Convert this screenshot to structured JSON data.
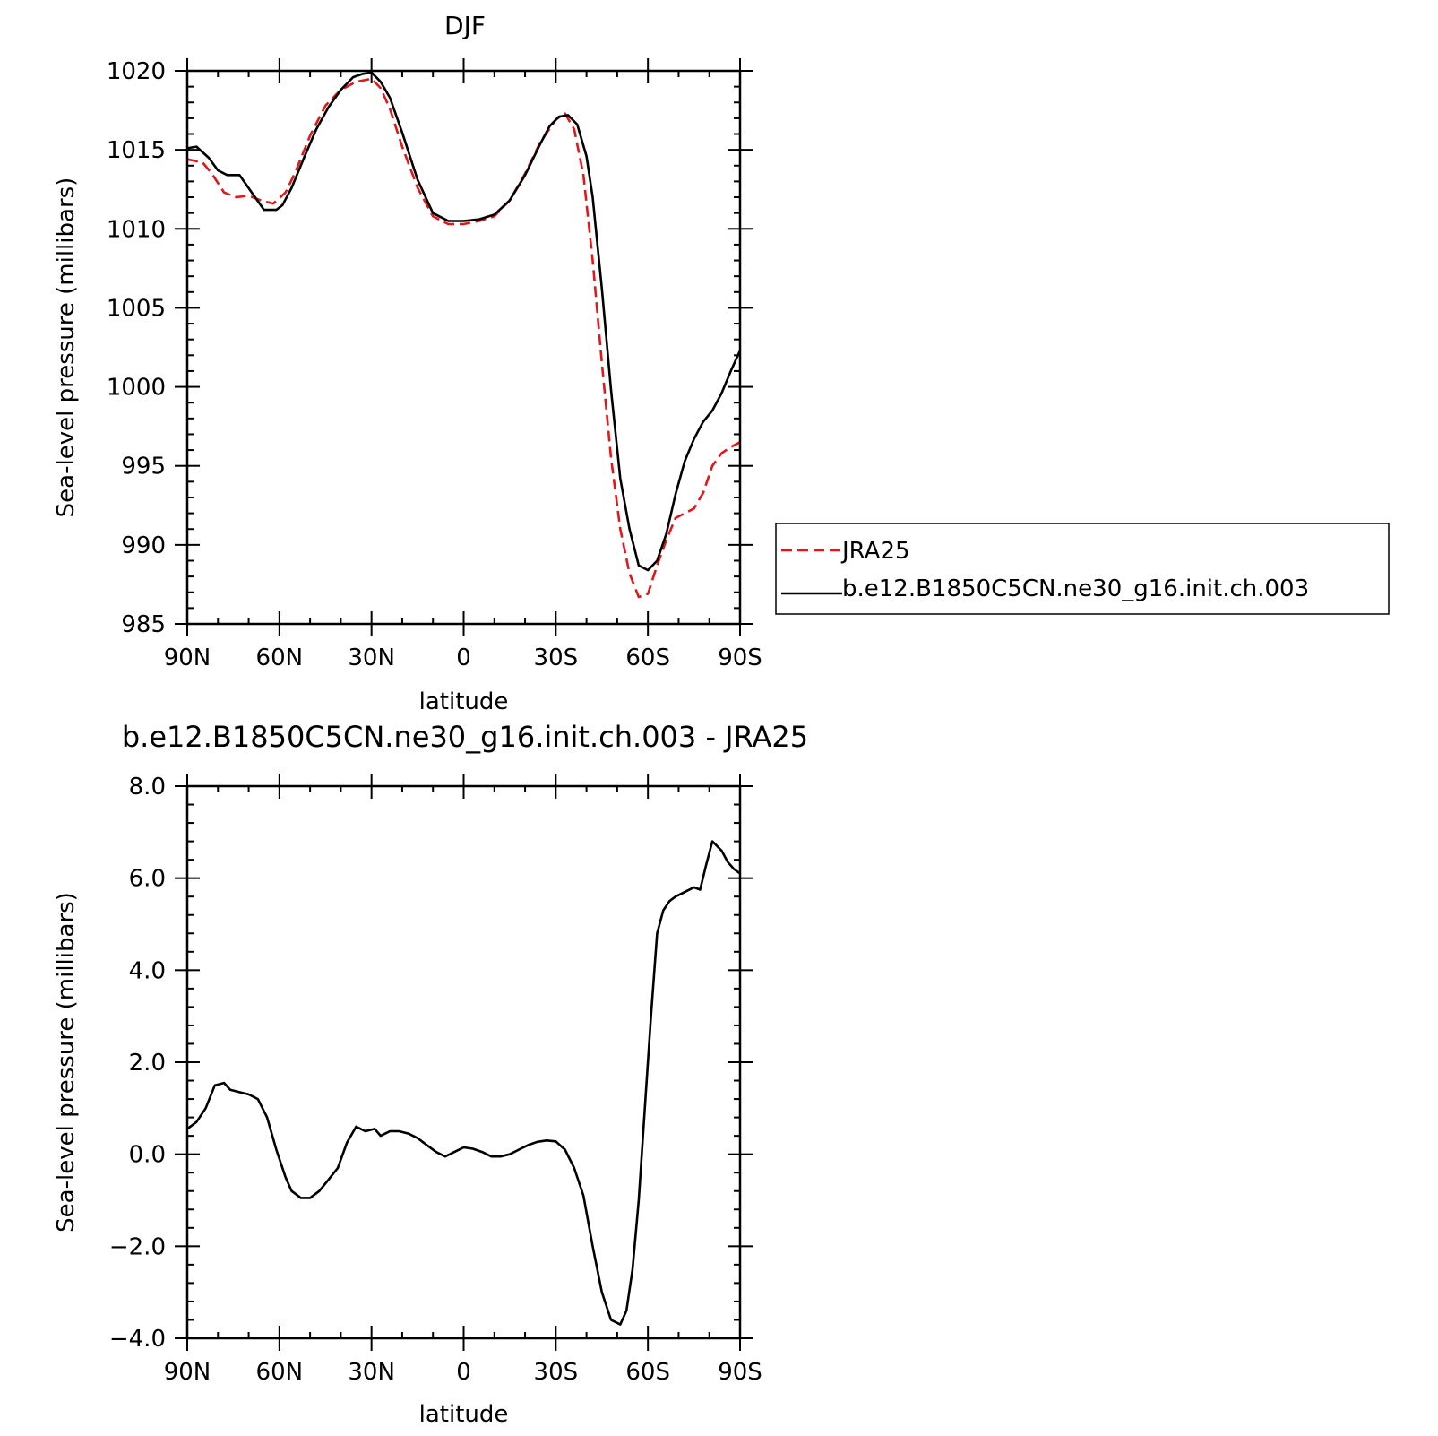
{
  "chart_data": [
    {
      "type": "line",
      "title": "DJF",
      "xlabel": "latitude",
      "ylabel": "Sea-level pressure (millibars)",
      "xlim": [
        -90,
        90
      ],
      "x_direction": "north to south",
      "ylim": [
        985,
        1020
      ],
      "xticks": [
        -90,
        -60,
        -30,
        0,
        30,
        60,
        90
      ],
      "xtick_labels": [
        "90N",
        "60N",
        "30N",
        "0",
        "30S",
        "60S",
        "90S"
      ],
      "yticks": [
        985,
        990,
        995,
        1000,
        1005,
        1010,
        1015,
        1020
      ],
      "ytick_labels": [
        "985",
        "990",
        "995",
        "1000",
        "1005",
        "1010",
        "1015",
        "1020"
      ],
      "grid": false,
      "legend": {
        "placement": "outside-right",
        "entries": [
          "JRA25",
          "b.e12.B1850C5CN.ne30_g16.init.ch.003"
        ]
      },
      "series": [
        {
          "name": "JRA25",
          "color": "#e0181b",
          "dash": "dashed",
          "x": [
            -90,
            -85,
            -82,
            -78,
            -74,
            -70,
            -66,
            -62,
            -58,
            -55,
            -50,
            -45,
            -40,
            -35,
            -30,
            -27,
            -24,
            -20,
            -15,
            -10,
            -5,
            0,
            5,
            10,
            15,
            20,
            25,
            30,
            33,
            36,
            39,
            42,
            45,
            48,
            51,
            54,
            57,
            60,
            63,
            66,
            69,
            72,
            75,
            78,
            81,
            84,
            87,
            90
          ],
          "y": [
            1014.4,
            1014.2,
            1013.5,
            1012.3,
            1012.0,
            1012.1,
            1011.8,
            1011.6,
            1012.3,
            1013.5,
            1015.9,
            1017.8,
            1018.8,
            1019.3,
            1019.5,
            1018.9,
            1017.6,
            1015.2,
            1012.6,
            1010.8,
            1010.3,
            1010.3,
            1010.5,
            1010.8,
            1011.8,
            1013.5,
            1015.5,
            1016.9,
            1017.3,
            1016.3,
            1013.4,
            1008.0,
            1001.5,
            995.5,
            991.0,
            988.2,
            986.7,
            986.9,
            988.7,
            990.3,
            991.7,
            992.0,
            992.3,
            993.3,
            995.0,
            995.8,
            996.2,
            996.5
          ]
        },
        {
          "name": "b.e12.B1850C5CN.ne30_g16.init.ch.003",
          "color": "#000000",
          "dash": "solid",
          "x": [
            -90,
            -87,
            -83,
            -80,
            -77,
            -73,
            -69,
            -65,
            -61,
            -59,
            -56,
            -52,
            -48,
            -44,
            -40,
            -36,
            -33,
            -30,
            -27,
            -24,
            -20,
            -15,
            -10,
            -5,
            0,
            5,
            10,
            15,
            20,
            25,
            28,
            31,
            34,
            37,
            40,
            42,
            45,
            48,
            51,
            54,
            57,
            60,
            63,
            66,
            69,
            72,
            75,
            78,
            81,
            84,
            87,
            90
          ],
          "y": [
            1015.1,
            1015.2,
            1014.5,
            1013.7,
            1013.4,
            1013.4,
            1012.3,
            1011.2,
            1011.2,
            1011.5,
            1012.6,
            1014.5,
            1016.3,
            1017.7,
            1018.8,
            1019.6,
            1019.8,
            1019.9,
            1019.3,
            1018.3,
            1016.1,
            1013.1,
            1011.0,
            1010.5,
            1010.5,
            1010.6,
            1010.9,
            1011.8,
            1013.4,
            1015.4,
            1016.5,
            1017.1,
            1017.2,
            1016.6,
            1014.6,
            1012.0,
            1006.2,
            999.8,
            994.2,
            991.0,
            988.7,
            988.4,
            989.0,
            990.7,
            993.2,
            995.3,
            996.7,
            997.8,
            998.5,
            999.6,
            1001.0,
            1002.3
          ]
        }
      ]
    },
    {
      "type": "line",
      "title": "b.e12.B1850C5CN.ne30_g16.init.ch.003 - JRA25",
      "xlabel": "latitude",
      "ylabel": "Sea-level pressure (millibars)",
      "xlim": [
        -90,
        90
      ],
      "x_direction": "north to south",
      "ylim": [
        -4.0,
        8.0
      ],
      "xticks": [
        -90,
        -60,
        -30,
        0,
        30,
        60,
        90
      ],
      "xtick_labels": [
        "90N",
        "60N",
        "30N",
        "0",
        "30S",
        "60S",
        "90S"
      ],
      "yticks": [
        -4.0,
        -2.0,
        0.0,
        2.0,
        4.0,
        6.0,
        8.0
      ],
      "ytick_labels": [
        "−4.0",
        "−2.0",
        "0.0",
        "2.0",
        "4.0",
        "6.0",
        "8.0"
      ],
      "grid": false,
      "series": [
        {
          "color": "#000000",
          "dash": "solid",
          "x": [
            -90,
            -87,
            -84,
            -81,
            -78,
            -76,
            -73,
            -70,
            -67,
            -64,
            -61,
            -58,
            -56,
            -53,
            -50,
            -47,
            -44,
            -41,
            -38,
            -35,
            -32,
            -29,
            -27,
            -24,
            -21,
            -18,
            -15,
            -12,
            -9,
            -6,
            -3,
            0,
            3,
            6,
            9,
            12,
            15,
            18,
            21,
            24,
            27,
            30,
            33,
            36,
            39,
            42,
            45,
            48,
            51,
            53,
            55,
            57,
            59,
            61,
            63,
            65,
            67,
            69,
            72,
            75,
            77,
            79,
            81,
            84,
            86,
            88,
            90
          ],
          "y": [
            0.55,
            0.7,
            1.0,
            1.5,
            1.55,
            1.4,
            1.35,
            1.3,
            1.2,
            0.8,
            0.1,
            -0.5,
            -0.8,
            -0.95,
            -0.95,
            -0.8,
            -0.55,
            -0.3,
            0.25,
            0.6,
            0.5,
            0.55,
            0.4,
            0.5,
            0.5,
            0.45,
            0.35,
            0.2,
            0.05,
            -0.05,
            0.05,
            0.15,
            0.12,
            0.05,
            -0.05,
            -0.05,
            0.0,
            0.1,
            0.2,
            0.27,
            0.3,
            0.28,
            0.1,
            -0.3,
            -0.9,
            -2.0,
            -3.0,
            -3.6,
            -3.7,
            -3.4,
            -2.5,
            -1.0,
            1.0,
            3.0,
            4.8,
            5.3,
            5.5,
            5.6,
            5.7,
            5.8,
            5.75,
            6.3,
            6.8,
            6.6,
            6.35,
            6.2,
            6.1
          ]
        }
      ]
    }
  ]
}
